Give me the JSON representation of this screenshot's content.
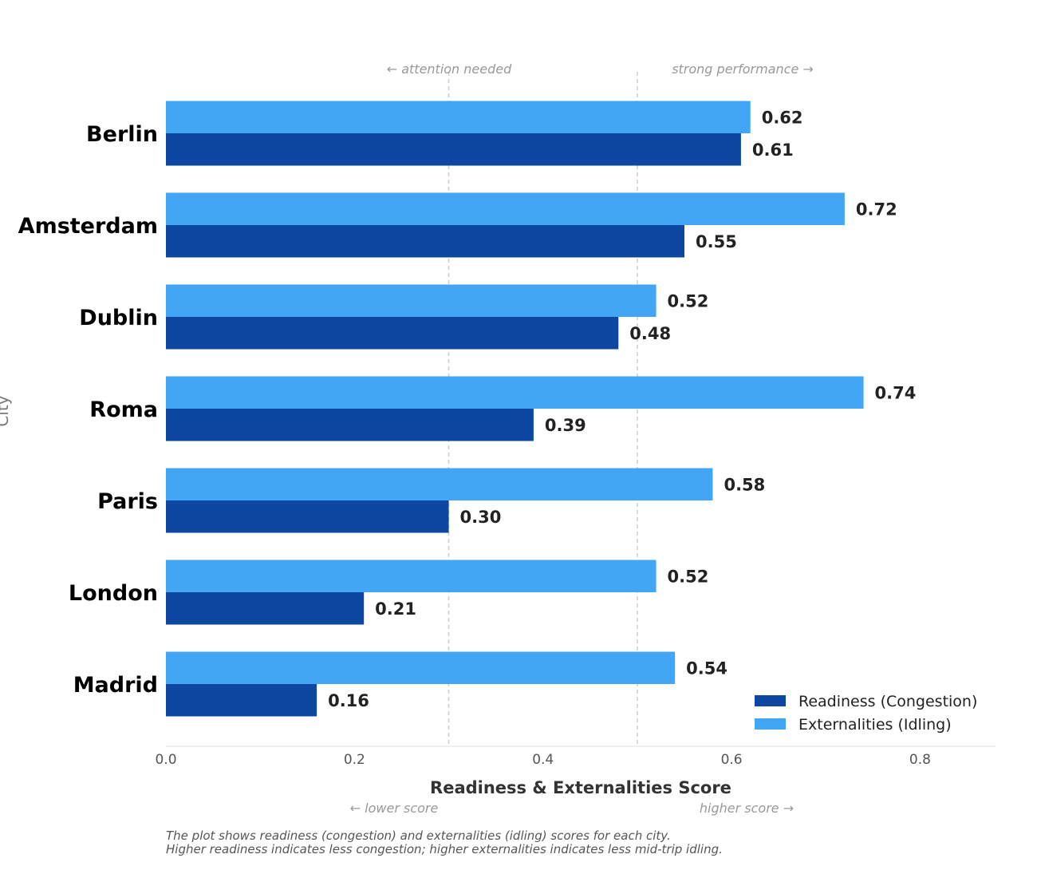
{
  "chart_data": {
    "type": "bar",
    "orientation": "horizontal",
    "categories": [
      "Berlin",
      "Amsterdam",
      "Dublin",
      "Roma",
      "Paris",
      "London",
      "Madrid"
    ],
    "series": [
      {
        "name": "Readiness (Congestion)",
        "color": "#0d47a1",
        "values": [
          0.61,
          0.55,
          0.48,
          0.39,
          0.3,
          0.21,
          0.16
        ],
        "labels": [
          "0.61",
          "0.55",
          "0.48",
          "0.39",
          "0.30",
          "0.21",
          "0.16"
        ]
      },
      {
        "name": "Externalities (Idling)",
        "color": "#42a5f5",
        "values": [
          0.62,
          0.72,
          0.52,
          0.74,
          0.58,
          0.52,
          0.54
        ],
        "labels": [
          "0.62",
          "0.72",
          "0.52",
          "0.74",
          "0.58",
          "0.52",
          "0.54"
        ]
      }
    ],
    "xlabel": "Readiness & Externalities Score",
    "ylabel": "City",
    "xlim": [
      0.0,
      0.88
    ],
    "xticks": [
      0.0,
      0.2,
      0.4,
      0.6,
      0.8
    ],
    "xtick_labels": [
      "0.0",
      "0.2",
      "0.4",
      "0.6",
      "0.8"
    ],
    "reference_lines": [
      0.3,
      0.5
    ],
    "top_annotations": {
      "left": "← attention needed",
      "right": "strong performance →"
    },
    "bottom_annotations": {
      "left": "← lower score",
      "right": "higher score →"
    },
    "legend_position": "bottom-right",
    "grid": false
  },
  "caption": {
    "line1": "The plot shows readiness (congestion) and externalities (idling) scores for each city.",
    "line2": "Higher readiness indicates less congestion; higher externalities indicates less mid-trip idling."
  }
}
